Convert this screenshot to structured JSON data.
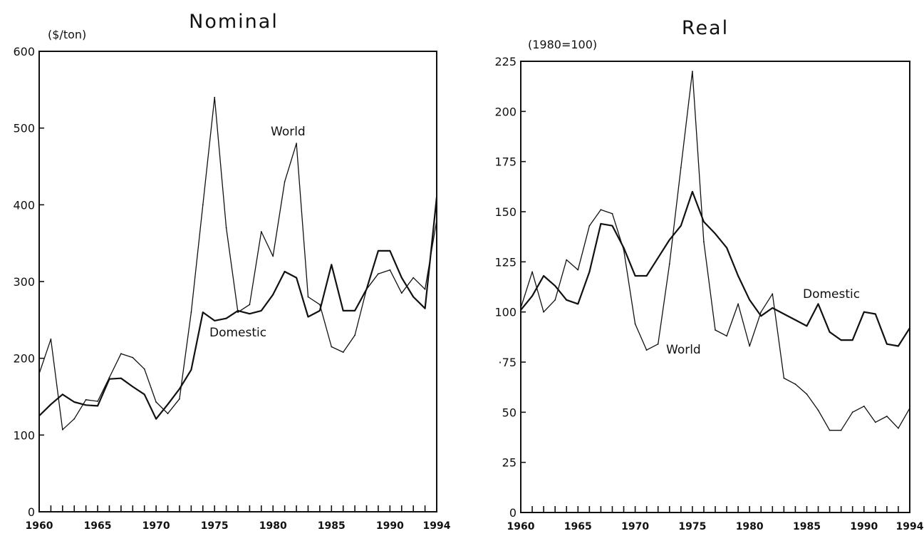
{
  "chart_data": [
    {
      "type": "line",
      "title": "Nominal",
      "ylabel": "($/ton)",
      "xlabel": "",
      "xlim": [
        1960,
        1994
      ],
      "ylim": [
        0,
        600
      ],
      "yticks": [
        0,
        100,
        200,
        300,
        400,
        500,
        600
      ],
      "xtick_labels": [
        1960,
        1965,
        1970,
        1975,
        1980,
        1985,
        1990,
        1994
      ],
      "grid": false,
      "legend": "none",
      "series": [
        {
          "name": "World",
          "x": [
            1960,
            1961,
            1962,
            1963,
            1964,
            1965,
            1966,
            1967,
            1968,
            1969,
            1970,
            1971,
            1972,
            1973,
            1974,
            1975,
            1976,
            1977,
            1978,
            1979,
            1980,
            1981,
            1982,
            1983,
            1984,
            1985,
            1986,
            1987,
            1988,
            1989,
            1990,
            1991,
            1992,
            1993,
            1994
          ],
          "values": [
            180,
            225,
            107,
            121,
            146,
            144,
            175,
            206,
            201,
            186,
            143,
            128,
            147,
            260,
            400,
            540,
            370,
            260,
            270,
            365,
            333,
            430,
            480,
            280,
            270,
            215,
            208,
            230,
            290,
            310,
            315,
            285,
            305,
            290,
            380
          ]
        },
        {
          "name": "Domestic",
          "x": [
            1960,
            1961,
            1962,
            1963,
            1964,
            1965,
            1966,
            1967,
            1968,
            1969,
            1970,
            1971,
            1972,
            1973,
            1974,
            1975,
            1976,
            1977,
            1978,
            1979,
            1980,
            1981,
            1982,
            1983,
            1984,
            1985,
            1986,
            1987,
            1988,
            1989,
            1990,
            1991,
            1992,
            1993,
            1994
          ],
          "values": [
            125,
            140,
            153,
            143,
            139,
            138,
            173,
            174,
            163,
            153,
            121,
            140,
            160,
            185,
            260,
            249,
            252,
            262,
            258,
            262,
            283,
            313,
            305,
            254,
            262,
            322,
            262,
            262,
            290,
            340,
            340,
            305,
            280,
            265,
            410
          ]
        }
      ]
    },
    {
      "type": "line",
      "title": "Real",
      "ylabel": "(1980=100)",
      "xlabel": "",
      "xlim": [
        1960,
        1994
      ],
      "ylim": [
        0,
        225
      ],
      "yticks": [
        0,
        25,
        50,
        75,
        100,
        125,
        150,
        175,
        200,
        225
      ],
      "xtick_labels": [
        1960,
        1965,
        1970,
        1975,
        1980,
        1985,
        1990,
        1994
      ],
      "grid": false,
      "legend": "none",
      "series": [
        {
          "name": "World",
          "x": [
            1960,
            1961,
            1962,
            1963,
            1964,
            1965,
            1966,
            1967,
            1968,
            1969,
            1970,
            1971,
            1972,
            1973,
            1974,
            1975,
            1976,
            1977,
            1978,
            1979,
            1980,
            1981,
            1982,
            1983,
            1984,
            1985,
            1986,
            1987,
            1988,
            1989,
            1990,
            1991,
            1992,
            1993,
            1994
          ],
          "values": [
            102,
            120,
            100,
            106,
            126,
            121,
            143,
            151,
            149,
            131,
            94,
            81,
            84,
            124,
            172,
            220,
            135,
            91,
            88,
            104,
            83,
            100,
            109,
            67,
            64,
            59,
            51,
            41,
            41,
            50,
            53,
            45,
            48,
            42,
            52
          ]
        },
        {
          "name": "Domestic",
          "x": [
            1960,
            1961,
            1962,
            1963,
            1964,
            1965,
            1966,
            1967,
            1968,
            1969,
            1970,
            1971,
            1972,
            1973,
            1974,
            1975,
            1976,
            1977,
            1978,
            1979,
            1980,
            1981,
            1982,
            1983,
            1984,
            1985,
            1986,
            1987,
            1988,
            1989,
            1990,
            1991,
            1992,
            1993,
            1994
          ],
          "values": [
            101,
            108,
            118,
            113,
            106,
            104,
            120,
            144,
            143,
            132,
            118,
            118,
            127,
            136,
            143,
            160,
            145,
            139,
            132,
            118,
            106,
            98,
            102,
            99,
            96,
            93,
            104,
            90,
            86,
            86,
            100,
            99,
            84,
            83,
            92
          ]
        }
      ]
    }
  ],
  "labels": {
    "left_y_tick_labels": [
      "0",
      "100",
      "200",
      "300",
      "400",
      "500",
      "600"
    ],
    "right_y_tick_labels": [
      "0",
      "25",
      "50",
      "·75",
      "100",
      "125",
      "150",
      "175",
      "200",
      "225"
    ],
    "left_x_tick_labels": [
      "1960",
      "1965",
      "1970",
      "1975",
      "1980",
      "1985",
      "1990",
      "1994"
    ],
    "right_x_tick_labels": [
      "1960",
      "1965",
      "1970",
      "1975",
      "1980",
      "1985",
      "1990",
      "1994"
    ],
    "left_series_labels": [
      "World",
      "Domestic"
    ],
    "right_series_labels": [
      "Domestic",
      "World"
    ]
  }
}
